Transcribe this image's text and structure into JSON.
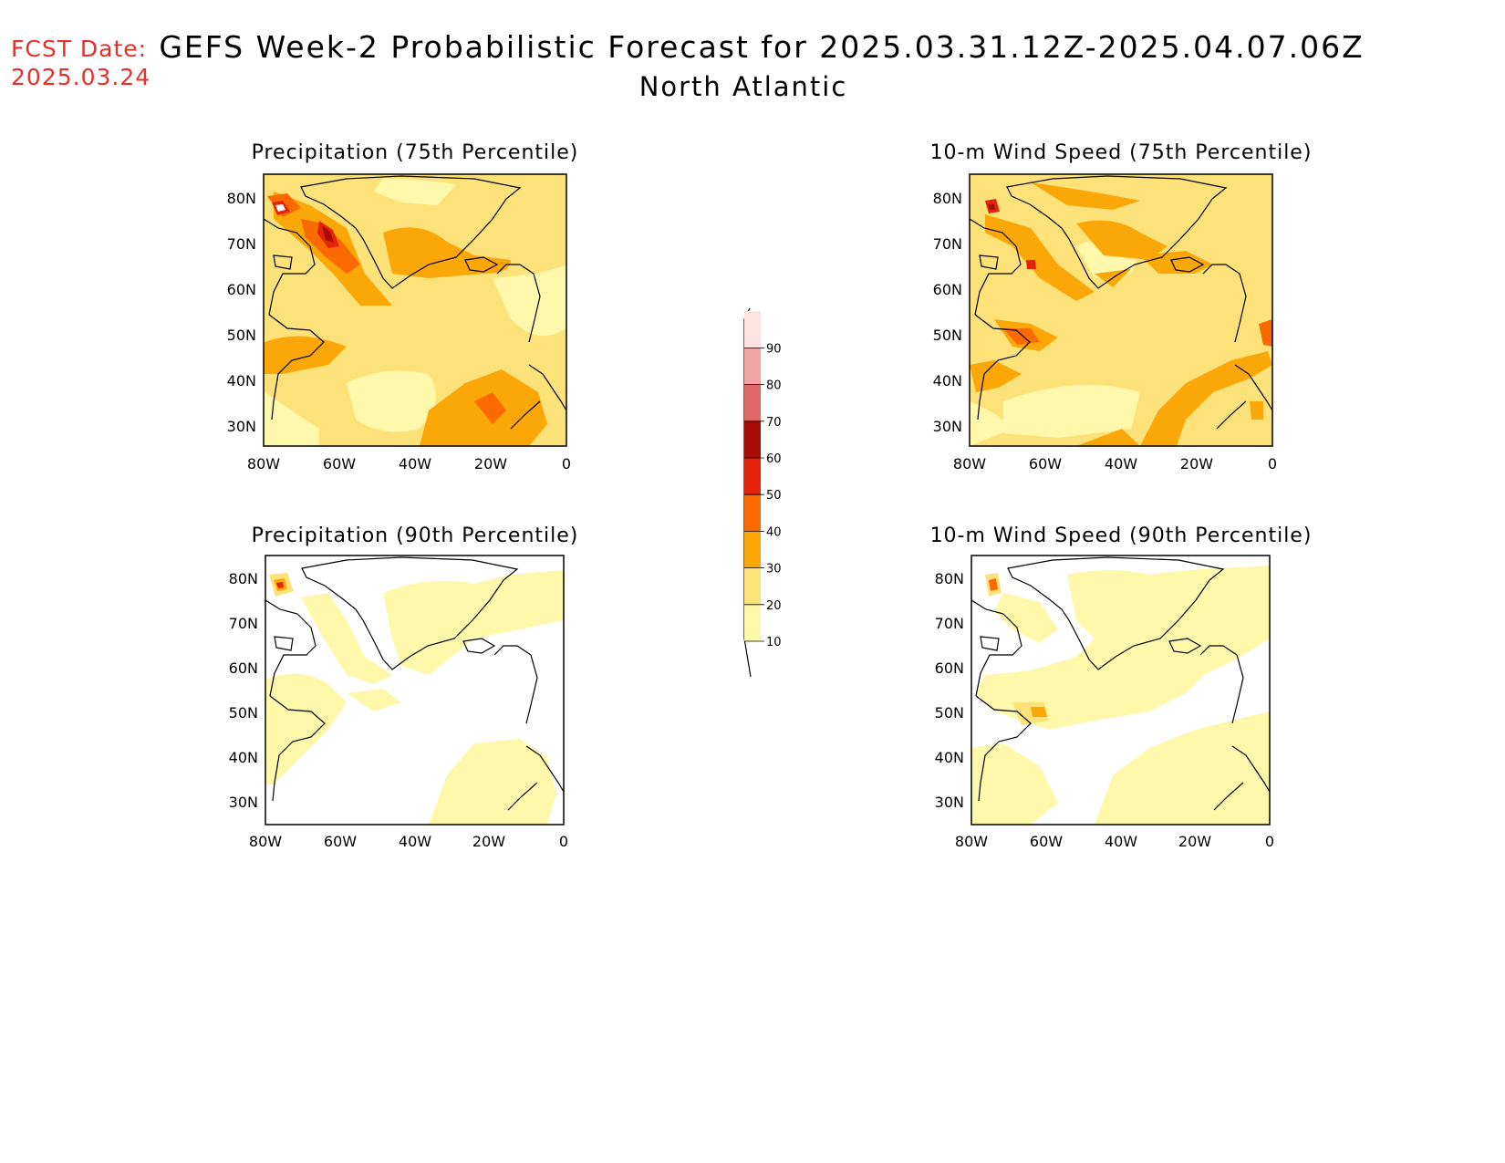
{
  "header": {
    "fcst_label": "FCST Date:",
    "fcst_date": "2025.03.24",
    "title": "GEFS Week-2 Probabilistic Forecast for 2025.03.31.12Z-2025.04.07.06Z",
    "subtitle": "North Atlantic"
  },
  "panels": [
    {
      "title": "Precipitation (75th Percentile)"
    },
    {
      "title": "10-m Wind Speed (75th Percentile)"
    },
    {
      "title": "Precipitation (90th Percentile)"
    },
    {
      "title": "10-m Wind Speed (90th Percentile)"
    }
  ],
  "axes": {
    "lat_ticks": [
      "80N",
      "70N",
      "60N",
      "50N",
      "40N",
      "30N"
    ],
    "lon_ticks": [
      "80W",
      "60W",
      "40W",
      "20W",
      "0"
    ]
  },
  "colorbar": {
    "levels": [
      "10",
      "20",
      "30",
      "40",
      "50",
      "60",
      "70",
      "80",
      "90"
    ],
    "colors": [
      "#fff8aa",
      "#fde27a",
      "#fba707",
      "#fb6a00",
      "#e3230b",
      "#a80c06",
      "#df6868",
      "#f2a3a3",
      "#fde2e2"
    ]
  },
  "map_colors": {
    "land_outline": "#000000",
    "pale_yellow": "#fff8aa",
    "yellow": "#fde27a",
    "orange": "#fba707",
    "dark_orange": "#fb6a00",
    "red": "#e3230b",
    "dark_red": "#a80c06"
  }
}
